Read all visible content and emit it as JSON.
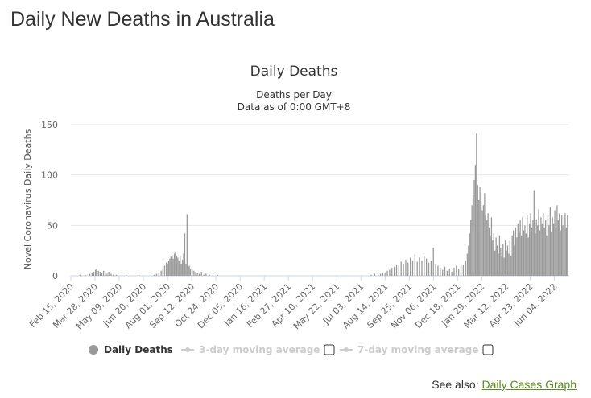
{
  "page": {
    "title": "Daily New Deaths in Australia",
    "see_also_label": "See also:",
    "see_also_link": "Daily Cases Graph"
  },
  "chart_data": {
    "type": "bar",
    "title": "Daily Deaths",
    "subtitle_line1": "Deaths per Day",
    "subtitle_line2": "Data as of 0:00 GMT+8",
    "ylabel": "Novel Coronavirus Daily Deaths",
    "xlabel": "",
    "ylim": [
      0,
      150
    ],
    "yticks": [
      0,
      50,
      100,
      150
    ],
    "grid": true,
    "bar_color": "#999999",
    "x_start": "2020-02-15",
    "x_end": "2022-06-30",
    "xtick_labels": [
      "Feb 15, 2020",
      "Mar 28, 2020",
      "May 09, 2020",
      "Jun 20, 2020",
      "Aug 01, 2020",
      "Sep 12, 2020",
      "Oct 24, 2020",
      "Dec 05, 2020",
      "Jan 16, 2021",
      "Feb 27, 2021",
      "Apr 10, 2021",
      "May 22, 2021",
      "Jul 03, 2021",
      "Aug 14, 2021",
      "Sep 25, 2021",
      "Nov 06, 2021",
      "Dec 18, 2021",
      "Jan 29, 2022",
      "Mar 12, 2022",
      "Apr 23, 2022",
      "Jun 04, 2022"
    ],
    "series": [
      {
        "name": "Daily Deaths",
        "points": [
          [
            "2020-03-01",
            1
          ],
          [
            "2020-03-10",
            1
          ],
          [
            "2020-03-18",
            2
          ],
          [
            "2020-03-22",
            3
          ],
          [
            "2020-03-25",
            4
          ],
          [
            "2020-03-28",
            6
          ],
          [
            "2020-03-30",
            7
          ],
          [
            "2020-04-02",
            5
          ],
          [
            "2020-04-05",
            4
          ],
          [
            "2020-04-08",
            3
          ],
          [
            "2020-04-11",
            5
          ],
          [
            "2020-04-14",
            3
          ],
          [
            "2020-04-17",
            2
          ],
          [
            "2020-04-20",
            4
          ],
          [
            "2020-04-24",
            2
          ],
          [
            "2020-04-28",
            1
          ],
          [
            "2020-05-03",
            1
          ],
          [
            "2020-05-20",
            1
          ],
          [
            "2020-06-10",
            1
          ],
          [
            "2020-07-08",
            1
          ],
          [
            "2020-07-12",
            2
          ],
          [
            "2020-07-16",
            3
          ],
          [
            "2020-07-20",
            5
          ],
          [
            "2020-07-23",
            7
          ],
          [
            "2020-07-26",
            10
          ],
          [
            "2020-07-29",
            13
          ],
          [
            "2020-07-31",
            12
          ],
          [
            "2020-08-02",
            15
          ],
          [
            "2020-08-04",
            17
          ],
          [
            "2020-08-06",
            19
          ],
          [
            "2020-08-08",
            21
          ],
          [
            "2020-08-10",
            17
          ],
          [
            "2020-08-12",
            22
          ],
          [
            "2020-08-14",
            24
          ],
          [
            "2020-08-16",
            20
          ],
          [
            "2020-08-18",
            18
          ],
          [
            "2020-08-20",
            15
          ],
          [
            "2020-08-22",
            20
          ],
          [
            "2020-08-24",
            12
          ],
          [
            "2020-08-26",
            16
          ],
          [
            "2020-08-28",
            22
          ],
          [
            "2020-08-30",
            42
          ],
          [
            "2020-09-01",
            12
          ],
          [
            "2020-09-03",
            61
          ],
          [
            "2020-09-05",
            9
          ],
          [
            "2020-09-07",
            10
          ],
          [
            "2020-09-09",
            7
          ],
          [
            "2020-09-12",
            6
          ],
          [
            "2020-09-15",
            5
          ],
          [
            "2020-09-18",
            4
          ],
          [
            "2020-09-21",
            3
          ],
          [
            "2020-09-24",
            2
          ],
          [
            "2020-09-28",
            4
          ],
          [
            "2020-10-02",
            1
          ],
          [
            "2020-10-06",
            2
          ],
          [
            "2020-10-12",
            1
          ],
          [
            "2020-10-18",
            1
          ],
          [
            "2020-10-26",
            1
          ],
          [
            "2021-07-20",
            1
          ],
          [
            "2021-07-26",
            2
          ],
          [
            "2021-08-01",
            1
          ],
          [
            "2021-08-05",
            2
          ],
          [
            "2021-08-09",
            3
          ],
          [
            "2021-08-13",
            3
          ],
          [
            "2021-08-17",
            5
          ],
          [
            "2021-08-21",
            6
          ],
          [
            "2021-08-25",
            8
          ],
          [
            "2021-08-29",
            9
          ],
          [
            "2021-09-02",
            11
          ],
          [
            "2021-09-06",
            10
          ],
          [
            "2021-09-10",
            14
          ],
          [
            "2021-09-14",
            12
          ],
          [
            "2021-09-18",
            16
          ],
          [
            "2021-09-22",
            13
          ],
          [
            "2021-09-26",
            18
          ],
          [
            "2021-09-30",
            15
          ],
          [
            "2021-10-04",
            21
          ],
          [
            "2021-10-08",
            14
          ],
          [
            "2021-10-12",
            18
          ],
          [
            "2021-10-16",
            15
          ],
          [
            "2021-10-20",
            20
          ],
          [
            "2021-10-24",
            17
          ],
          [
            "2021-10-28",
            13
          ],
          [
            "2021-11-01",
            15
          ],
          [
            "2021-11-05",
            28
          ],
          [
            "2021-11-09",
            12
          ],
          [
            "2021-11-13",
            10
          ],
          [
            "2021-11-17",
            8
          ],
          [
            "2021-11-21",
            6
          ],
          [
            "2021-11-25",
            9
          ],
          [
            "2021-11-29",
            5
          ],
          [
            "2021-12-03",
            7
          ],
          [
            "2021-12-07",
            4
          ],
          [
            "2021-12-11",
            8
          ],
          [
            "2021-12-15",
            10
          ],
          [
            "2021-12-19",
            7
          ],
          [
            "2021-12-23",
            12
          ],
          [
            "2021-12-27",
            11
          ],
          [
            "2021-12-31",
            15
          ],
          [
            "2022-01-03",
            22
          ],
          [
            "2022-01-05",
            30
          ],
          [
            "2022-01-07",
            42
          ],
          [
            "2022-01-09",
            55
          ],
          [
            "2022-01-11",
            70
          ],
          [
            "2022-01-13",
            80
          ],
          [
            "2022-01-15",
            95
          ],
          [
            "2022-01-17",
            110
          ],
          [
            "2022-01-19",
            141
          ],
          [
            "2022-01-21",
            90
          ],
          [
            "2022-01-23",
            75
          ],
          [
            "2022-01-25",
            88
          ],
          [
            "2022-01-27",
            72
          ],
          [
            "2022-01-29",
            65
          ],
          [
            "2022-01-31",
            70
          ],
          [
            "2022-02-02",
            82
          ],
          [
            "2022-02-04",
            60
          ],
          [
            "2022-02-06",
            55
          ],
          [
            "2022-02-08",
            62
          ],
          [
            "2022-02-10",
            48
          ],
          [
            "2022-02-12",
            40
          ],
          [
            "2022-02-14",
            58
          ],
          [
            "2022-02-16",
            35
          ],
          [
            "2022-02-18",
            42
          ],
          [
            "2022-02-20",
            25
          ],
          [
            "2022-02-22",
            38
          ],
          [
            "2022-02-24",
            30
          ],
          [
            "2022-02-26",
            22
          ],
          [
            "2022-02-28",
            40
          ],
          [
            "2022-03-02",
            28
          ],
          [
            "2022-03-04",
            20
          ],
          [
            "2022-03-06",
            32
          ],
          [
            "2022-03-08",
            18
          ],
          [
            "2022-03-10",
            35
          ],
          [
            "2022-03-12",
            25
          ],
          [
            "2022-03-14",
            30
          ],
          [
            "2022-03-16",
            22
          ],
          [
            "2022-03-18",
            35
          ],
          [
            "2022-03-20",
            20
          ],
          [
            "2022-03-22",
            40
          ],
          [
            "2022-03-24",
            45
          ],
          [
            "2022-03-26",
            30
          ],
          [
            "2022-03-28",
            48
          ],
          [
            "2022-03-30",
            38
          ],
          [
            "2022-04-01",
            52
          ],
          [
            "2022-04-03",
            44
          ],
          [
            "2022-04-05",
            55
          ],
          [
            "2022-04-07",
            40
          ],
          [
            "2022-04-09",
            58
          ],
          [
            "2022-04-11",
            45
          ],
          [
            "2022-04-13",
            50
          ],
          [
            "2022-04-15",
            42
          ],
          [
            "2022-04-17",
            60
          ],
          [
            "2022-04-19",
            38
          ],
          [
            "2022-04-21",
            52
          ],
          [
            "2022-04-23",
            62
          ],
          [
            "2022-04-25",
            48
          ],
          [
            "2022-04-27",
            55
          ],
          [
            "2022-04-29",
            85
          ],
          [
            "2022-05-01",
            42
          ],
          [
            "2022-05-03",
            56
          ],
          [
            "2022-05-05",
            50
          ],
          [
            "2022-05-07",
            66
          ],
          [
            "2022-05-09",
            45
          ],
          [
            "2022-05-11",
            58
          ],
          [
            "2022-05-13",
            52
          ],
          [
            "2022-05-15",
            62
          ],
          [
            "2022-05-17",
            48
          ],
          [
            "2022-05-19",
            55
          ],
          [
            "2022-05-21",
            40
          ],
          [
            "2022-05-23",
            60
          ],
          [
            "2022-05-25",
            50
          ],
          [
            "2022-05-27",
            68
          ],
          [
            "2022-05-29",
            44
          ],
          [
            "2022-05-31",
            58
          ],
          [
            "2022-06-02",
            52
          ],
          [
            "2022-06-04",
            65
          ],
          [
            "2022-06-06",
            48
          ],
          [
            "2022-06-08",
            70
          ],
          [
            "2022-06-10",
            55
          ],
          [
            "2022-06-12",
            62
          ],
          [
            "2022-06-14",
            45
          ],
          [
            "2022-06-16",
            60
          ],
          [
            "2022-06-18",
            50
          ],
          [
            "2022-06-20",
            58
          ],
          [
            "2022-06-22",
            62
          ],
          [
            "2022-06-24",
            48
          ],
          [
            "2022-06-26",
            60
          ]
        ]
      }
    ],
    "legend": [
      {
        "label": "Daily Deaths",
        "active": true
      },
      {
        "label": "3-day moving average",
        "active": false
      },
      {
        "label": "7-day moving average",
        "active": false
      }
    ],
    "legend_placement": "bottom"
  }
}
